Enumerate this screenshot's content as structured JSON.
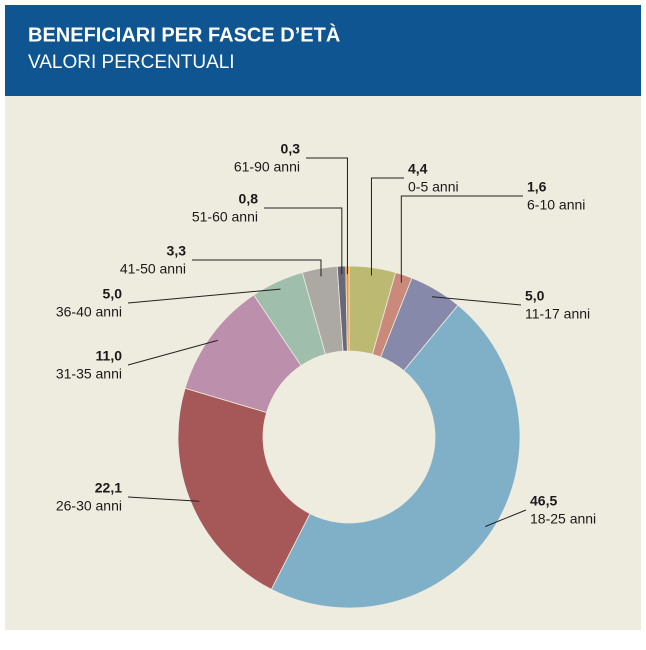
{
  "chart_data": {
    "type": "donut",
    "title": "BENEFICIARI PER FASCE D’ETÀ",
    "subtitle": "VALORI PERCENTUALI",
    "categories": [
      "0-5 anni",
      "6-10 anni",
      "11-17 anni",
      "18-25 anni",
      "26-30 anni",
      "31-35 anni",
      "36-40 anni",
      "41-50 anni",
      "51-60 anni",
      "61-90 anni"
    ],
    "values": [
      4.4,
      1.6,
      5.0,
      46.5,
      22.1,
      11.0,
      5.0,
      3.3,
      0.8,
      0.3
    ],
    "value_labels": [
      "4,4",
      "1,6",
      "5,0",
      "46,5",
      "22,1",
      "11,0",
      "5,0",
      "3,3",
      "0,8",
      "0,3"
    ],
    "colors": [
      "#bcba72",
      "#c98a7c",
      "#8789aa",
      "#80afc8",
      "#a65758",
      "#bc90ad",
      "#9fbeab",
      "#aca9a5",
      "#686878",
      "#ea9430"
    ]
  }
}
